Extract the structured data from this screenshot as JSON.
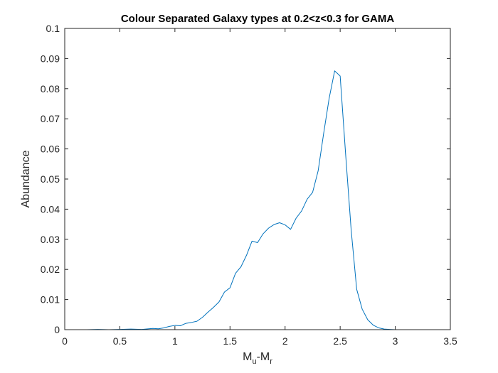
{
  "chart_data": {
    "type": "line",
    "title": "Colour Separated Galaxy types at 0.2<z<0.3 for GAMA",
    "xlabel": {
      "main": "M",
      "sub1": "u",
      "mid": "-M",
      "sub2": "r"
    },
    "ylabel": "Abundance",
    "xlim": [
      0,
      3.5
    ],
    "ylim": [
      0,
      0.1
    ],
    "xticks": [
      0,
      0.5,
      1,
      1.5,
      2,
      2.5,
      3,
      3.5
    ],
    "xtick_labels": [
      "0",
      "0.5",
      "1",
      "1.5",
      "2",
      "2.5",
      "3",
      "3.5"
    ],
    "yticks": [
      0,
      0.01,
      0.02,
      0.03,
      0.04,
      0.05,
      0.06,
      0.07,
      0.08,
      0.09,
      0.1
    ],
    "ytick_labels": [
      "0",
      "0.01",
      "0.02",
      "0.03",
      "0.04",
      "0.05",
      "0.06",
      "0.07",
      "0.08",
      "0.09",
      "0.1"
    ],
    "grid": false,
    "line_color": "#0072BD",
    "series": [
      {
        "x": [
          0,
          0.1,
          0.2,
          0.3,
          0.4,
          0.5,
          0.6,
          0.7,
          0.8,
          0.85,
          0.9,
          0.95,
          1.0,
          1.05,
          1.1,
          1.15,
          1.2,
          1.25,
          1.3,
          1.35,
          1.4,
          1.45,
          1.5,
          1.55,
          1.6,
          1.65,
          1.7,
          1.75,
          1.8,
          1.85,
          1.9,
          1.95,
          2.0,
          2.05,
          2.1,
          2.15,
          2.2,
          2.25,
          2.3,
          2.35,
          2.4,
          2.45,
          2.5,
          2.55,
          2.6,
          2.65,
          2.7,
          2.75,
          2.8,
          2.85,
          2.9,
          2.95,
          3.0,
          3.05,
          3.1,
          3.15,
          3.2,
          3.25,
          3.3,
          3.4,
          3.5
        ],
        "y": [
          0,
          0,
          0,
          0.0001,
          0,
          0.0001,
          0.0002,
          0.0001,
          0.0004,
          0.0003,
          0.0006,
          0.0011,
          0.0014,
          0.0013,
          0.0021,
          0.0024,
          0.0028,
          0.0041,
          0.0058,
          0.0074,
          0.0092,
          0.0125,
          0.0139,
          0.0187,
          0.0209,
          0.0247,
          0.0294,
          0.0289,
          0.0318,
          0.0337,
          0.0349,
          0.0355,
          0.0348,
          0.0333,
          0.037,
          0.0394,
          0.0433,
          0.0456,
          0.0527,
          0.0651,
          0.0768,
          0.0859,
          0.0842,
          0.058,
          0.033,
          0.0134,
          0.0068,
          0.0033,
          0.0015,
          0.0006,
          0.0002,
          0.0001,
          0,
          0,
          0,
          0,
          0,
          0,
          0,
          0,
          0
        ]
      }
    ]
  }
}
